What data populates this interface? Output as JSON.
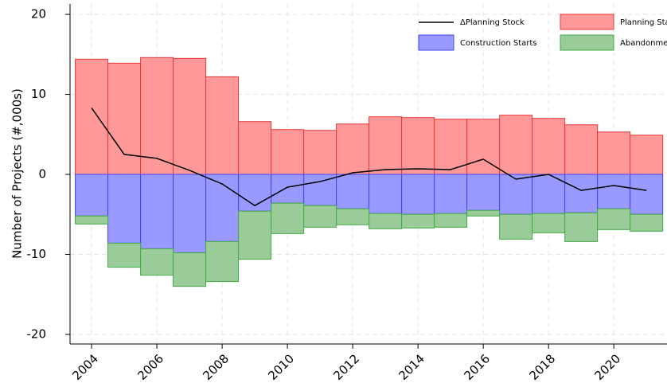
{
  "chart_data": {
    "type": "bar",
    "y_label": "Number of Projects (#,000s)",
    "x": [
      2004,
      2005,
      2006,
      2007,
      2008,
      2009,
      2010,
      2011,
      2012,
      2013,
      2014,
      2015,
      2016,
      2017,
      2018,
      2019,
      2020,
      2021
    ],
    "xlim": [
      2003.34,
      2021.63
    ],
    "xticks": [
      2004,
      2006,
      2008,
      2010,
      2012,
      2014,
      2016,
      2018,
      2020
    ],
    "ylim": [
      -21.2,
      21.3
    ],
    "yticks": [
      20,
      10,
      0,
      -10,
      -20
    ],
    "grid": true,
    "legend": "upper right",
    "series": [
      {
        "name": "ΔPlanning Stock",
        "type": "line",
        "color": "#000000",
        "values": [
          8.3,
          2.5,
          2.0,
          0.5,
          -1.2,
          -3.9,
          -1.6,
          -0.9,
          0.2,
          0.6,
          0.7,
          0.6,
          1.9,
          -0.6,
          0.0,
          -2.0,
          -1.4,
          -2.0
        ]
      },
      {
        "name": "Planning Starts",
        "type": "bar",
        "color": "#ff9999",
        "edge": "#e83a3a",
        "values": [
          14.4,
          13.9,
          14.6,
          14.5,
          12.2,
          6.6,
          5.6,
          5.5,
          6.3,
          7.2,
          7.1,
          6.9,
          6.9,
          7.4,
          7.0,
          6.2,
          5.3,
          4.9
        ]
      },
      {
        "name": "Construction Starts",
        "type": "bar",
        "color": "#9999ff",
        "edge": "#4444ee",
        "values": [
          -5.2,
          -8.6,
          -9.3,
          -9.8,
          -8.4,
          -4.6,
          -3.6,
          -3.9,
          -4.3,
          -4.9,
          -5.0,
          -4.9,
          -4.5,
          -5.0,
          -4.9,
          -4.8,
          -4.3,
          -5.0
        ]
      },
      {
        "name": "Abandonments",
        "type": "bar",
        "stack": true,
        "color": "#99cc99",
        "edge": "#44aa44",
        "values": [
          -1.0,
          -3.0,
          -3.3,
          -4.2,
          -5.0,
          -6.0,
          -3.8,
          -2.7,
          -2.0,
          -1.9,
          -1.7,
          -1.7,
          -0.7,
          -3.1,
          -2.4,
          -3.6,
          -2.6,
          -2.1
        ]
      }
    ]
  }
}
